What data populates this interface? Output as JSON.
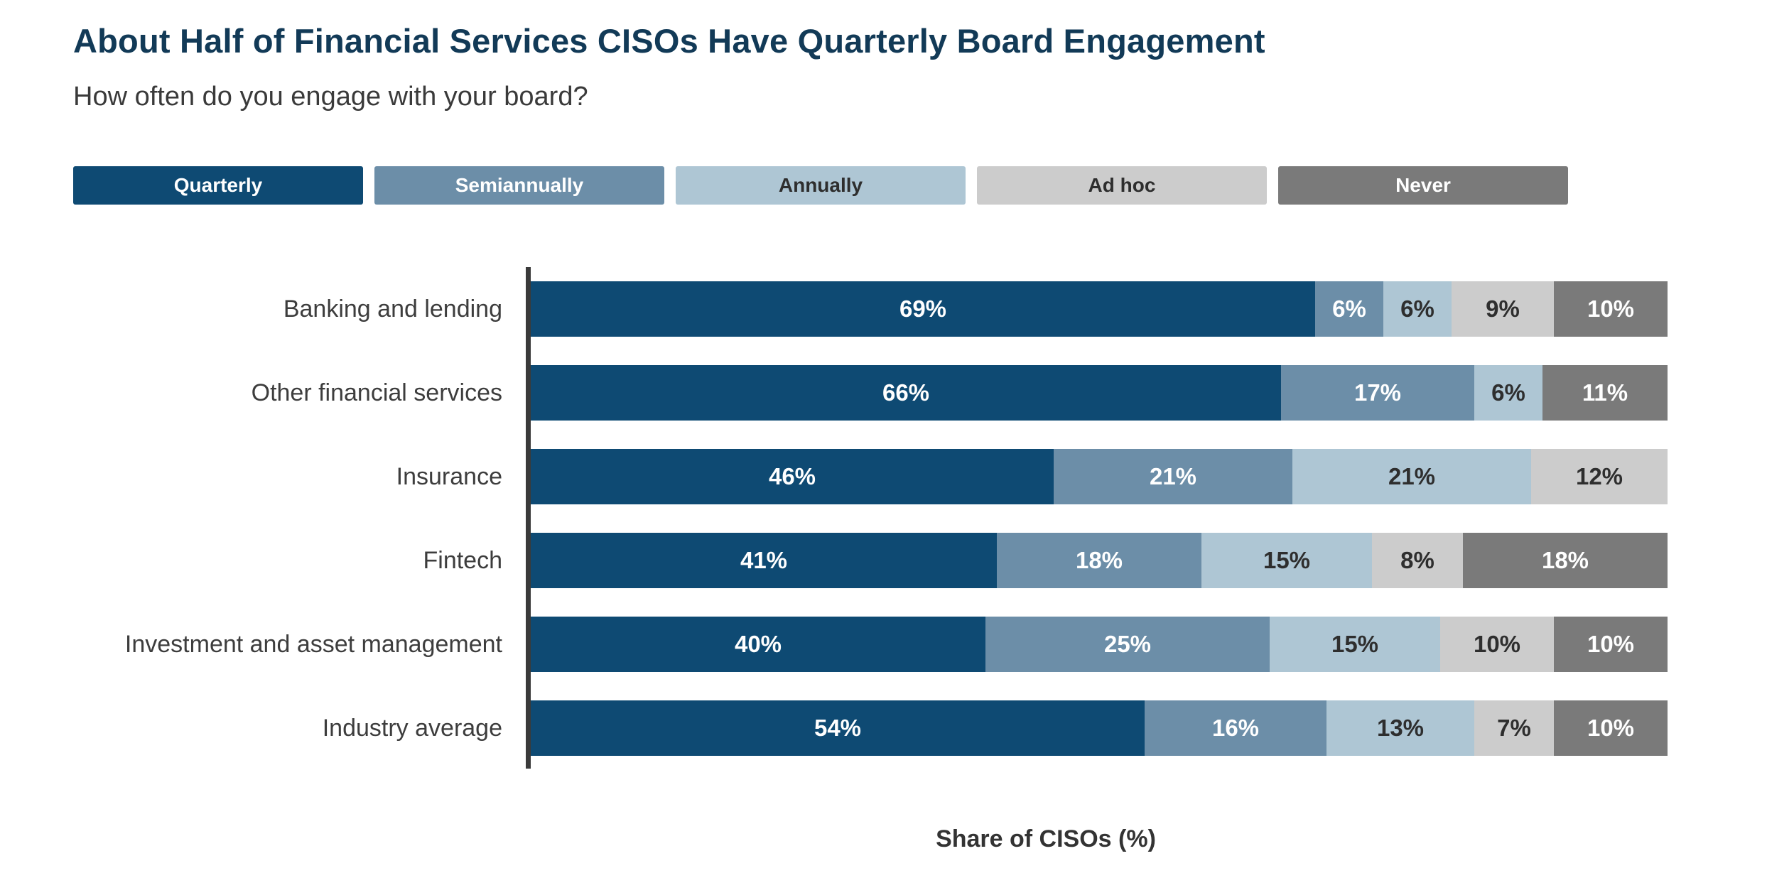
{
  "title": "About Half of Financial Services CISOs Have Quarterly Board Engagement",
  "subtitle": "How often do you engage with your board?",
  "colors": {
    "title_text": "#123A57",
    "subtitle_text": "#3A3A3A",
    "axis_line": "#3A3A3A",
    "category_label_text": "#3D3D3D",
    "quarterly": "#0E4A73",
    "semiannually": "#6C8EA8",
    "annually": "#AEC6D4",
    "ad_hoc": "#CCCCCC",
    "never": "#7A7A7A"
  },
  "chart_data": {
    "type": "bar",
    "stacked": true,
    "orientation": "horizontal",
    "title": "About Half of Financial Services CISOs Have Quarterly Board Engagement",
    "subtitle": "How often do you engage with your board?",
    "xlabel": "Share of CISOs (%)",
    "ylabel": "",
    "xlim": [
      0,
      100
    ],
    "grid": false,
    "legend_position": "top",
    "value_suffix": "%",
    "categories": [
      "Banking and lending",
      "Other financial services",
      "Insurance",
      "Fintech",
      "Investment and asset management",
      "Industry average"
    ],
    "series": [
      {
        "name": "Quarterly",
        "color": "#0E4A73",
        "label_color": "#FFFFFF",
        "values": [
          69,
          66,
          46,
          41,
          40,
          54
        ]
      },
      {
        "name": "Semiannually",
        "color": "#6C8EA8",
        "label_color": "#FFFFFF",
        "values": [
          6,
          17,
          21,
          18,
          25,
          16
        ]
      },
      {
        "name": "Annually",
        "color": "#AEC6D4",
        "label_color": "#2E2E2E",
        "values": [
          6,
          6,
          21,
          15,
          15,
          13
        ]
      },
      {
        "name": "Ad hoc",
        "color": "#CCCCCC",
        "label_color": "#2E2E2E",
        "values": [
          9,
          0,
          12,
          8,
          10,
          7
        ]
      },
      {
        "name": "Never",
        "color": "#7A7A7A",
        "label_color": "#FFFFFF",
        "values": [
          10,
          11,
          0,
          18,
          10,
          10
        ]
      }
    ]
  }
}
